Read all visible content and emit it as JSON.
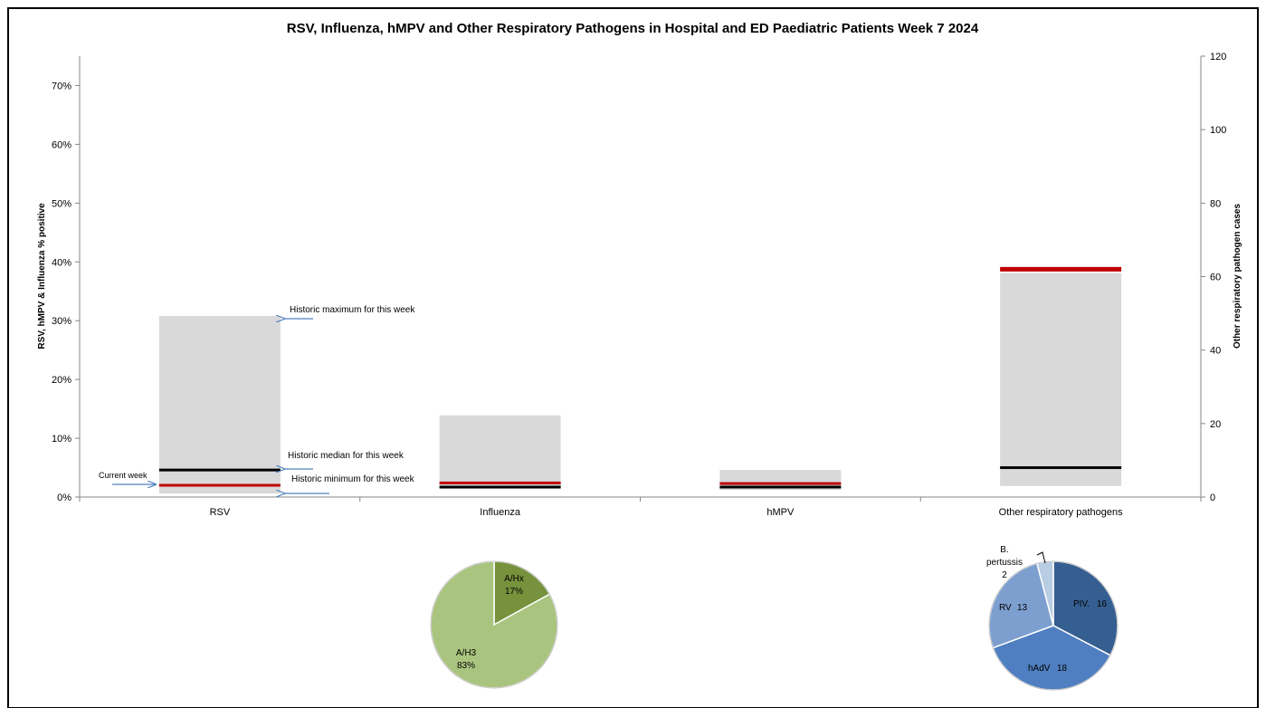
{
  "chart_data": [
    {
      "type": "bar",
      "title": "RSV, Influenza, hMPV and Other Respiratory Pathogens in Hospital and ED Paediatric Patients Week 7 2024",
      "xlabel": "",
      "ylabel": "RSV, hMPV & Influenza % positive",
      "y2label": "Other respiratory pathogen cases",
      "ylim": [
        0,
        75
      ],
      "y2lim": [
        0,
        120
      ],
      "yticks": [
        "0%",
        "10%",
        "20%",
        "30%",
        "40%",
        "50%",
        "60%",
        "70%"
      ],
      "y2ticks": [
        "0",
        "20",
        "40",
        "60",
        "80",
        "100",
        "120"
      ],
      "grid": false,
      "categories": [
        "RSV",
        "Influenza",
        "hMPV",
        "Other respiratory pathogens"
      ],
      "axis": [
        "left",
        "left",
        "left",
        "right"
      ],
      "historic_min": [
        0.6,
        1.4,
        1.2,
        3
      ],
      "historic_max": [
        30.8,
        13.9,
        4.6,
        61
      ],
      "historic_median": [
        4.6,
        1.7,
        1.7,
        8
      ],
      "current_week": [
        2.0,
        2.4,
        2.3,
        62
      ],
      "annotations": {
        "max": "Historic maximum for this week",
        "median": "Historic median for this week",
        "min": "Historic minimum for this week",
        "current": "Current week"
      },
      "colors": {
        "range": "#d9d9d9",
        "median": "#000000",
        "current": "#c00000",
        "arrow": "#4f81bd",
        "axis": "#868686"
      }
    },
    {
      "type": "pie",
      "category": "Influenza",
      "slices": [
        {
          "label": "A/Hx",
          "value_label": "17%",
          "value": 17,
          "color": "#76923c"
        },
        {
          "label": "A/H3",
          "value_label": "83%",
          "value": 83,
          "color": "#a9c47f"
        }
      ]
    },
    {
      "type": "pie",
      "category": "Other respiratory pathogens",
      "slices": [
        {
          "label": "PIV.",
          "value_label": "16",
          "value": 16,
          "color": "#365f91"
        },
        {
          "label": "hAdV",
          "value_label": "18",
          "value": 18,
          "color": "#4f7fc0"
        },
        {
          "label": "RV",
          "value_label": "13",
          "value": 13,
          "color": "#7d9fd0"
        },
        {
          "label": "B. pertussis",
          "value_label": "2",
          "value": 2,
          "color": "#b8cce4"
        }
      ]
    }
  ]
}
